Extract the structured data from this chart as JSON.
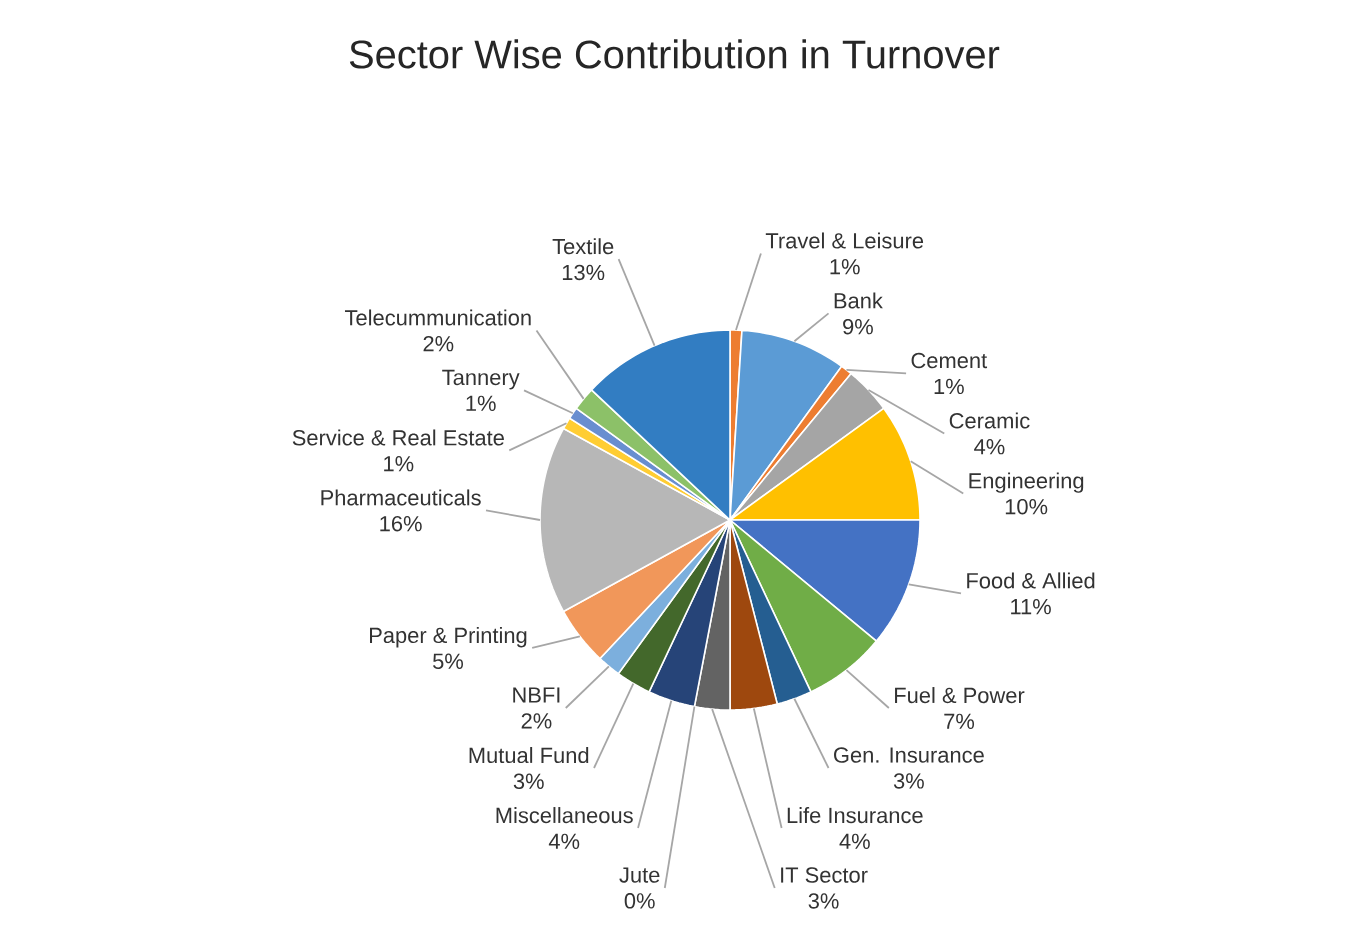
{
  "chart_data": {
    "type": "pie",
    "title": "Sector Wise Contribution in Turnover",
    "value_labels": [
      "1%",
      "9%",
      "1%",
      "4%",
      "10%",
      "11%",
      "7%",
      "3%",
      "4%",
      "3%",
      "0%",
      "4%",
      "3%",
      "2%",
      "5%",
      "16%",
      "1%",
      "1%",
      "2%",
      "13%"
    ],
    "categories": [
      "Travel & Leisure",
      "Bank",
      "Cement",
      "Ceramic",
      "Engineering",
      "Food & Allied",
      "Fuel & Power",
      "Gen. Insurance",
      "Life Insurance",
      "IT Sector",
      "Jute",
      "Miscellaneous",
      "Mutual Fund",
      "NBFI",
      "Paper & Printing",
      "Pharmaceuticals",
      "Service & Real Estate",
      "Tannery",
      "Telecummunication",
      "Textile"
    ],
    "values": [
      1,
      9,
      1,
      4,
      10,
      11,
      7,
      3,
      4,
      3,
      0,
      4,
      3,
      2,
      5,
      16,
      1,
      1,
      2,
      13
    ],
    "colors": [
      "#ed7d31",
      "#5b9bd5",
      "#ed7d31",
      "#a5a5a5",
      "#ffc000",
      "#4472c4",
      "#70ad47",
      "#255e91",
      "#9e480e",
      "#636363",
      "#997300",
      "#264478",
      "#43682b",
      "#7cafdd",
      "#f1975a",
      "#b7b7b7",
      "#ffcd33",
      "#698ed0",
      "#8cc168",
      "#327dc2"
    ]
  }
}
